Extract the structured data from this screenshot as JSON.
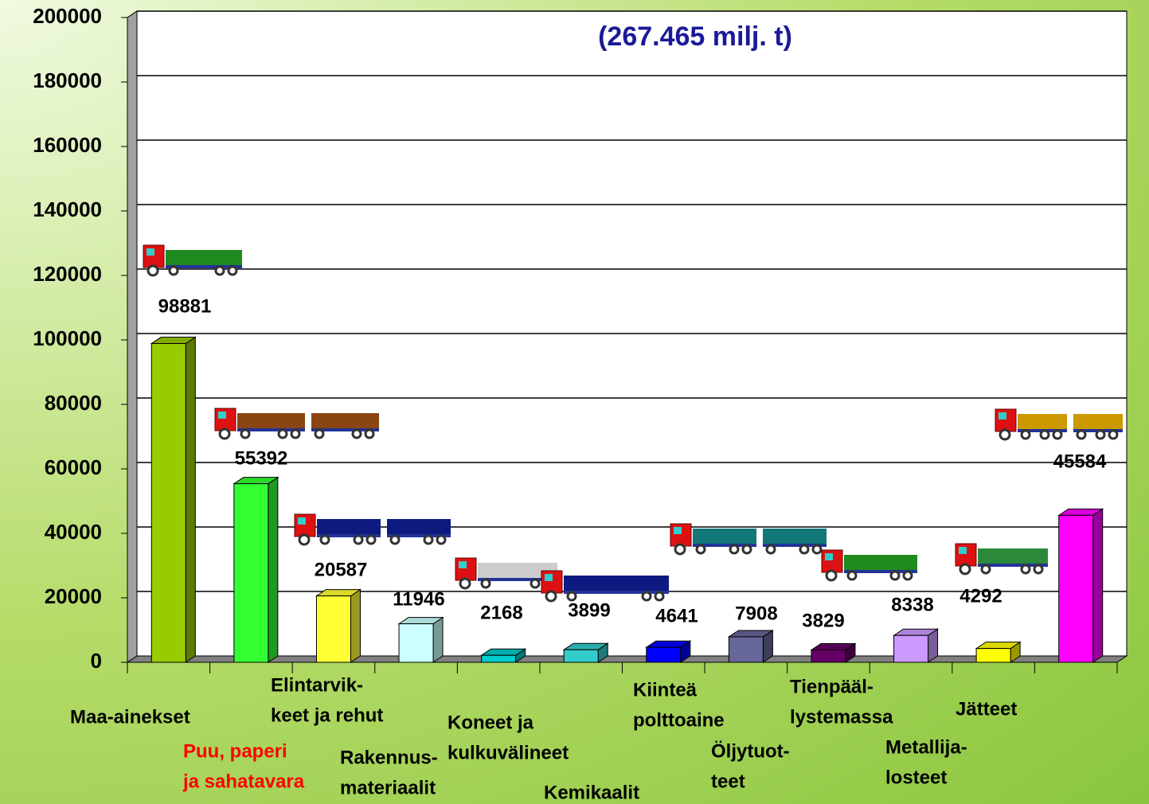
{
  "chart_data": {
    "type": "bar",
    "title": "(267.465 milj. t)",
    "categories": [
      [
        "Maa-ainekset"
      ],
      [
        "Puu, paperi",
        "ja sahatavara"
      ],
      [
        "Elintarvik-",
        "keet ja rehut"
      ],
      [
        "Rakennus-",
        "materiaalit"
      ],
      [
        "Koneet ja",
        "kulkuvälineet"
      ],
      [
        "Kemikaalit"
      ],
      [
        "Kiinteä",
        "polttoaine"
      ],
      [
        "Öljytuot-",
        "teet"
      ],
      [
        "Tienpääl-",
        "lystemassa"
      ],
      [
        "Metallija-",
        "losteet"
      ],
      [
        "Jätteet"
      ],
      null
    ],
    "values": [
      98881,
      55392,
      20587,
      11946,
      2168,
      3899,
      4641,
      7908,
      3829,
      8338,
      4292,
      45584
    ],
    "colors": [
      "#99cc00",
      "#33ff33",
      "#ffff33",
      "#ccffff",
      "#00cccc",
      "#33cccc",
      "#0000ff",
      "#666699",
      "#660066",
      "#cc99ff",
      "#ffff00",
      "#ff00ff"
    ],
    "highlight_color": "#ff0000",
    "highlight_category": 1,
    "ylim": [
      0,
      200000
    ],
    "yticks": [
      0,
      20000,
      40000,
      60000,
      80000,
      100000,
      120000,
      140000,
      160000,
      180000,
      200000
    ],
    "grid": true
  }
}
